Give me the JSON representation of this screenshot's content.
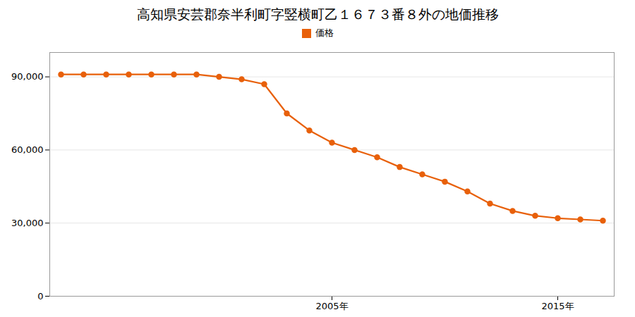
{
  "chart_data": {
    "type": "line",
    "title": "高知県安芸郡奈半利町字竪横町乙１６７３番８外の地価推移",
    "x": [
      1993,
      1994,
      1995,
      1996,
      1997,
      1998,
      1999,
      2000,
      2001,
      2002,
      2003,
      2004,
      2005,
      2006,
      2007,
      2008,
      2009,
      2010,
      2011,
      2012,
      2013,
      2014,
      2015,
      2016,
      2017
    ],
    "series": [
      {
        "name": "価格",
        "color": "#e8600a",
        "marker": "circle",
        "values": [
          91000,
          91000,
          91000,
          91000,
          91000,
          91000,
          91000,
          90000,
          89000,
          87000,
          75000,
          68000,
          63000,
          60000,
          57000,
          53000,
          50000,
          47000,
          43000,
          38000,
          35000,
          33000,
          32000,
          31500,
          31000
        ]
      }
    ],
    "xlim": [
      1992.5,
      2017.5
    ],
    "xticks": [
      {
        "value": 2005,
        "label": "2005年"
      },
      {
        "value": 2015,
        "label": "2015年"
      }
    ],
    "ylim": [
      0,
      100000
    ],
    "yticks": [
      0,
      {
        "value": 30000,
        "label": "30,000"
      },
      {
        "value": 60000,
        "label": "60,000"
      },
      {
        "value": 90000,
        "label": "90,000"
      }
    ],
    "grid": "y",
    "legend": "top"
  }
}
